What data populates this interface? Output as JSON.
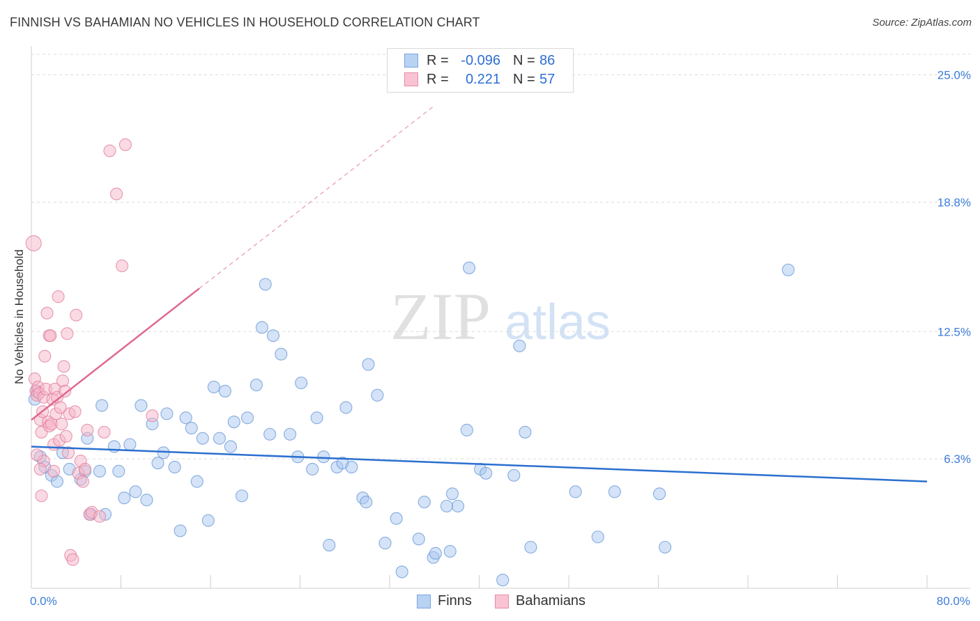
{
  "title": "FINNISH VS BAHAMIAN NO VEHICLES IN HOUSEHOLD CORRELATION CHART",
  "source": "Source: ZipAtlas.com",
  "watermark": {
    "zip": "ZIP",
    "atlas": "atlas"
  },
  "legend": {
    "r_label": "R =",
    "n_label": "N =",
    "rows": [
      {
        "name": "Finns",
        "r": "-0.096",
        "n": "86",
        "fill": "#b8d2f4",
        "stroke": "#7ba4e0"
      },
      {
        "name": "Bahamians",
        "r": "0.221",
        "n": "57",
        "fill": "#f9c3d3",
        "stroke": "#e98aa8"
      }
    ]
  },
  "bottom_legend": [
    "Finns",
    "Bahamians"
  ],
  "colors": {
    "finns_point": "#a9c7ef",
    "finns_stroke": "#6b9ad8",
    "finns_line": "#2a6fcf",
    "bahamians_point": "#f6b6c8",
    "bahamians_stroke": "#e27f9f",
    "bahamians_line": "#e06690",
    "axis_label": "#3d7dd8",
    "grid": "#dcdcdc"
  },
  "chart_data": {
    "type": "scatter",
    "title": "FINNISH VS BAHAMIAN NO VEHICLES IN HOUSEHOLD CORRELATION CHART",
    "xlabel": "",
    "ylabel": "No Vehicles in Household",
    "xlim": [
      0,
      80
    ],
    "ylim": [
      0,
      26.0
    ],
    "x_tick_labels": [
      {
        "value": 0,
        "label": "0.0%"
      },
      {
        "value": 80,
        "label": "80.0%"
      }
    ],
    "y_tick_labels": [
      {
        "value": 6.3,
        "label": "6.3%"
      },
      {
        "value": 12.5,
        "label": "12.5%"
      },
      {
        "value": 18.8,
        "label": "18.8%"
      },
      {
        "value": 25.0,
        "label": "25.0%"
      }
    ],
    "x_minor_ticks": [
      0,
      8,
      16,
      24,
      32,
      40,
      48,
      56,
      64,
      72,
      80
    ],
    "grid": true,
    "series": [
      {
        "name": "Finns",
        "r": -0.096,
        "n": 86,
        "trend": {
          "x": [
            0,
            80
          ],
          "y": [
            6.9,
            5.2
          ]
        },
        "points": [
          [
            0.3,
            9.2
          ],
          [
            0.5,
            9.6
          ],
          [
            0.8,
            6.4
          ],
          [
            1.2,
            5.9
          ],
          [
            1.8,
            5.5
          ],
          [
            2.3,
            5.2
          ],
          [
            2.8,
            6.6
          ],
          [
            3.4,
            5.8
          ],
          [
            4.4,
            5.3
          ],
          [
            4.8,
            5.7
          ],
          [
            5.0,
            7.3
          ],
          [
            5.3,
            3.6
          ],
          [
            6.1,
            5.7
          ],
          [
            6.3,
            8.9
          ],
          [
            6.6,
            3.6
          ],
          [
            7.4,
            6.9
          ],
          [
            7.8,
            5.7
          ],
          [
            8.3,
            4.4
          ],
          [
            8.8,
            7.0
          ],
          [
            9.3,
            4.7
          ],
          [
            9.8,
            8.9
          ],
          [
            10.3,
            4.3
          ],
          [
            10.8,
            8.0
          ],
          [
            11.3,
            6.1
          ],
          [
            11.8,
            6.6
          ],
          [
            12.1,
            8.5
          ],
          [
            12.8,
            5.9
          ],
          [
            13.3,
            2.8
          ],
          [
            13.8,
            8.3
          ],
          [
            14.3,
            7.8
          ],
          [
            14.8,
            5.2
          ],
          [
            15.3,
            7.3
          ],
          [
            15.8,
            3.3
          ],
          [
            16.3,
            9.8
          ],
          [
            16.8,
            7.3
          ],
          [
            17.3,
            9.6
          ],
          [
            17.8,
            6.9
          ],
          [
            18.1,
            8.1
          ],
          [
            18.8,
            4.5
          ],
          [
            19.3,
            8.3
          ],
          [
            20.1,
            9.9
          ],
          [
            20.6,
            12.7
          ],
          [
            20.9,
            14.8
          ],
          [
            21.3,
            7.5
          ],
          [
            21.6,
            12.3
          ],
          [
            22.3,
            11.4
          ],
          [
            23.1,
            7.5
          ],
          [
            23.8,
            6.4
          ],
          [
            24.1,
            10.0
          ],
          [
            25.1,
            5.8
          ],
          [
            25.5,
            8.3
          ],
          [
            26.1,
            6.4
          ],
          [
            26.6,
            2.1
          ],
          [
            27.3,
            5.9
          ],
          [
            27.8,
            6.1
          ],
          [
            28.1,
            8.8
          ],
          [
            28.6,
            5.9
          ],
          [
            29.6,
            4.4
          ],
          [
            29.9,
            4.2
          ],
          [
            30.1,
            10.9
          ],
          [
            30.9,
            9.4
          ],
          [
            31.6,
            2.2
          ],
          [
            32.6,
            3.4
          ],
          [
            33.1,
            0.8
          ],
          [
            34.6,
            2.4
          ],
          [
            35.1,
            4.2
          ],
          [
            35.9,
            1.5
          ],
          [
            36.1,
            1.7
          ],
          [
            37.1,
            4.0
          ],
          [
            37.4,
            1.8
          ],
          [
            37.6,
            4.6
          ],
          [
            38.1,
            4.0
          ],
          [
            38.9,
            7.7
          ],
          [
            39.1,
            15.6
          ],
          [
            40.1,
            5.8
          ],
          [
            40.6,
            5.6
          ],
          [
            42.1,
            0.4
          ],
          [
            43.1,
            5.5
          ],
          [
            43.6,
            11.8
          ],
          [
            44.1,
            7.6
          ],
          [
            44.6,
            2.0
          ],
          [
            48.6,
            4.7
          ],
          [
            50.6,
            2.5
          ],
          [
            52.1,
            4.7
          ],
          [
            56.1,
            4.6
          ],
          [
            56.6,
            2.0
          ],
          [
            67.6,
            15.5
          ]
        ]
      },
      {
        "name": "Bahamians",
        "r": 0.221,
        "n": 57,
        "trend": {
          "x": [
            0,
            15
          ],
          "y": [
            8.2,
            14.6
          ]
        },
        "trend_extension": {
          "x": [
            15,
            36
          ],
          "y": [
            14.6,
            23.5
          ]
        },
        "points": [
          [
            0.2,
            16.8
          ],
          [
            0.3,
            10.2
          ],
          [
            0.4,
            9.6
          ],
          [
            0.5,
            9.4
          ],
          [
            0.6,
            9.8
          ],
          [
            0.7,
            9.5
          ],
          [
            0.8,
            8.2
          ],
          [
            0.9,
            7.6
          ],
          [
            1.0,
            8.6
          ],
          [
            1.1,
            9.3
          ],
          [
            1.2,
            11.3
          ],
          [
            1.3,
            9.7
          ],
          [
            1.4,
            13.4
          ],
          [
            1.5,
            8.1
          ],
          [
            1.6,
            7.9
          ],
          [
            1.6,
            12.3
          ],
          [
            1.7,
            12.3
          ],
          [
            1.8,
            8.0
          ],
          [
            1.9,
            9.2
          ],
          [
            2.0,
            7.0
          ],
          [
            2.1,
            9.7
          ],
          [
            2.2,
            8.5
          ],
          [
            2.3,
            9.3
          ],
          [
            2.4,
            14.2
          ],
          [
            2.5,
            7.2
          ],
          [
            2.6,
            8.8
          ],
          [
            2.7,
            8.0
          ],
          [
            2.8,
            10.1
          ],
          [
            2.9,
            10.8
          ],
          [
            3.0,
            9.6
          ],
          [
            3.1,
            7.4
          ],
          [
            3.2,
            12.4
          ],
          [
            3.3,
            6.6
          ],
          [
            3.4,
            8.5
          ],
          [
            3.5,
            1.6
          ],
          [
            3.7,
            1.4
          ],
          [
            3.9,
            8.6
          ],
          [
            4.0,
            13.3
          ],
          [
            4.2,
            5.6
          ],
          [
            4.4,
            6.2
          ],
          [
            4.6,
            5.2
          ],
          [
            4.8,
            5.8
          ],
          [
            5.0,
            7.7
          ],
          [
            5.2,
            3.6
          ],
          [
            5.4,
            3.7
          ],
          [
            6.1,
            3.5
          ],
          [
            6.5,
            7.6
          ],
          [
            7.0,
            21.3
          ],
          [
            7.6,
            19.2
          ],
          [
            8.1,
            15.7
          ],
          [
            8.4,
            21.6
          ],
          [
            10.8,
            8.4
          ],
          [
            0.9,
            4.5
          ],
          [
            1.1,
            6.2
          ],
          [
            2.0,
            5.7
          ],
          [
            0.5,
            6.5
          ],
          [
            0.8,
            5.8
          ]
        ]
      }
    ]
  }
}
